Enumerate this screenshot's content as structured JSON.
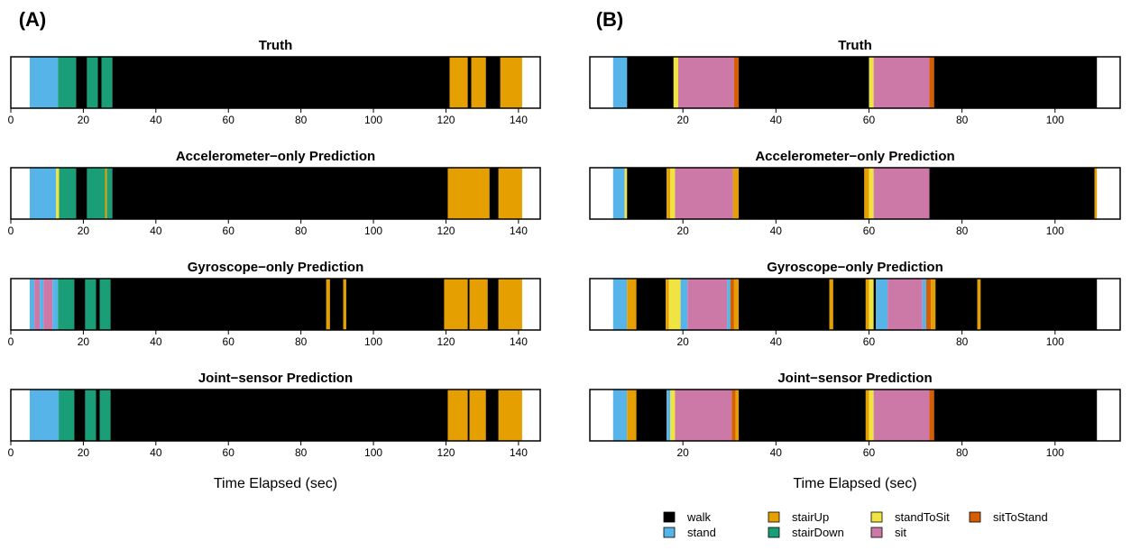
{
  "activity_colors": {
    "walk": "#000000",
    "stand": "#56B4E9",
    "stairUp": "#E69F00",
    "stairDown": "#1A9E77",
    "standToSit": "#F0E442",
    "sit": "#CC79A7",
    "sitToStand": "#D55E00"
  },
  "legend": [
    {
      "key": "walk",
      "label": "walk"
    },
    {
      "key": "stand",
      "label": "stand"
    },
    {
      "key": "stairUp",
      "label": "stairUp"
    },
    {
      "key": "stairDown",
      "label": "stairDown"
    },
    {
      "key": "standToSit",
      "label": "standToSit"
    },
    {
      "key": "sit",
      "label": "sit"
    },
    {
      "key": "sitToStand",
      "label": "sitToStand"
    }
  ],
  "chart_data": [
    {
      "type": "timeline",
      "panel": "(A)",
      "xlabel": "Time Elapsed (sec)",
      "xlim": [
        0,
        146
      ],
      "xticks": [
        0,
        20,
        40,
        60,
        80,
        100,
        120,
        140
      ],
      "tracks": [
        {
          "title": "Truth",
          "segments": [
            {
              "start": 5.2,
              "end": 13,
              "activity": "stand"
            },
            {
              "start": 13,
              "end": 18,
              "activity": "stairDown"
            },
            {
              "start": 18,
              "end": 21,
              "activity": "walk"
            },
            {
              "start": 21,
              "end": 24,
              "activity": "stairDown"
            },
            {
              "start": 24,
              "end": 25,
              "activity": "walk"
            },
            {
              "start": 25,
              "end": 28,
              "activity": "stairDown"
            },
            {
              "start": 28,
              "end": 121,
              "activity": "walk"
            },
            {
              "start": 121,
              "end": 126,
              "activity": "stairUp"
            },
            {
              "start": 126,
              "end": 127,
              "activity": "walk"
            },
            {
              "start": 127,
              "end": 131,
              "activity": "stairUp"
            },
            {
              "start": 131,
              "end": 135,
              "activity": "walk"
            },
            {
              "start": 135,
              "end": 141,
              "activity": "stairUp"
            }
          ]
        },
        {
          "title": "Accelerometer−only Prediction",
          "segments": [
            {
              "start": 5.2,
              "end": 12.5,
              "activity": "stand"
            },
            {
              "start": 12.5,
              "end": 13.3,
              "activity": "standToSit"
            },
            {
              "start": 13.3,
              "end": 18,
              "activity": "stairDown"
            },
            {
              "start": 18,
              "end": 21,
              "activity": "walk"
            },
            {
              "start": 21,
              "end": 26,
              "activity": "stairDown"
            },
            {
              "start": 26,
              "end": 26.5,
              "activity": "stairUp"
            },
            {
              "start": 26.5,
              "end": 28,
              "activity": "stairDown"
            },
            {
              "start": 28,
              "end": 120.5,
              "activity": "walk"
            },
            {
              "start": 120.5,
              "end": 132,
              "activity": "stairUp"
            },
            {
              "start": 132,
              "end": 134.5,
              "activity": "walk"
            },
            {
              "start": 134.5,
              "end": 141,
              "activity": "stairUp"
            }
          ]
        },
        {
          "title": "Gyroscope−only Prediction",
          "segments": [
            {
              "start": 5.2,
              "end": 6.5,
              "activity": "stand"
            },
            {
              "start": 6.5,
              "end": 8,
              "activity": "sit"
            },
            {
              "start": 8,
              "end": 9,
              "activity": "stand"
            },
            {
              "start": 9,
              "end": 11.5,
              "activity": "sit"
            },
            {
              "start": 11.5,
              "end": 13,
              "activity": "stand"
            },
            {
              "start": 13,
              "end": 17.5,
              "activity": "stairDown"
            },
            {
              "start": 17.5,
              "end": 20.5,
              "activity": "walk"
            },
            {
              "start": 20.5,
              "end": 23.5,
              "activity": "stairDown"
            },
            {
              "start": 23.5,
              "end": 24.5,
              "activity": "walk"
            },
            {
              "start": 24.5,
              "end": 27.5,
              "activity": "stairDown"
            },
            {
              "start": 27.5,
              "end": 87,
              "activity": "walk"
            },
            {
              "start": 87,
              "end": 88,
              "activity": "stairUp"
            },
            {
              "start": 88,
              "end": 91.7,
              "activity": "walk"
            },
            {
              "start": 91.7,
              "end": 92.5,
              "activity": "stairUp"
            },
            {
              "start": 92.5,
              "end": 119.5,
              "activity": "walk"
            },
            {
              "start": 119.5,
              "end": 126,
              "activity": "stairUp"
            },
            {
              "start": 126,
              "end": 126.5,
              "activity": "walk"
            },
            {
              "start": 126.5,
              "end": 131.5,
              "activity": "stairUp"
            },
            {
              "start": 131.5,
              "end": 134.5,
              "activity": "walk"
            },
            {
              "start": 134.5,
              "end": 141,
              "activity": "stairUp"
            }
          ]
        },
        {
          "title": "Joint−sensor Prediction",
          "segments": [
            {
              "start": 5.2,
              "end": 13.2,
              "activity": "stand"
            },
            {
              "start": 13.2,
              "end": 17.5,
              "activity": "stairDown"
            },
            {
              "start": 17.5,
              "end": 20.5,
              "activity": "walk"
            },
            {
              "start": 20.5,
              "end": 23.5,
              "activity": "stairDown"
            },
            {
              "start": 23.5,
              "end": 24.5,
              "activity": "walk"
            },
            {
              "start": 24.5,
              "end": 27.5,
              "activity": "stairDown"
            },
            {
              "start": 27.5,
              "end": 120.5,
              "activity": "walk"
            },
            {
              "start": 120.5,
              "end": 126,
              "activity": "stairUp"
            },
            {
              "start": 126,
              "end": 126.5,
              "activity": "walk"
            },
            {
              "start": 126.5,
              "end": 131,
              "activity": "stairUp"
            },
            {
              "start": 131,
              "end": 134.5,
              "activity": "walk"
            },
            {
              "start": 134.5,
              "end": 141,
              "activity": "stairUp"
            }
          ]
        }
      ]
    },
    {
      "type": "timeline",
      "panel": "(B)",
      "xlabel": "Time Elapsed (sec)",
      "xlim": [
        0,
        114
      ],
      "xticks": [
        20,
        40,
        60,
        80,
        100
      ],
      "tracks": [
        {
          "title": "Truth",
          "segments": [
            {
              "start": 5,
              "end": 8,
              "activity": "stand"
            },
            {
              "start": 8,
              "end": 18,
              "activity": "walk"
            },
            {
              "start": 18,
              "end": 19,
              "activity": "standToSit"
            },
            {
              "start": 19,
              "end": 31,
              "activity": "sit"
            },
            {
              "start": 31,
              "end": 32,
              "activity": "sitToStand"
            },
            {
              "start": 32,
              "end": 60,
              "activity": "walk"
            },
            {
              "start": 60,
              "end": 61,
              "activity": "standToSit"
            },
            {
              "start": 61,
              "end": 73,
              "activity": "sit"
            },
            {
              "start": 73,
              "end": 74,
              "activity": "sitToStand"
            },
            {
              "start": 74,
              "end": 109,
              "activity": "walk"
            }
          ]
        },
        {
          "title": "Accelerometer−only Prediction",
          "segments": [
            {
              "start": 5,
              "end": 7.5,
              "activity": "stand"
            },
            {
              "start": 7.5,
              "end": 8,
              "activity": "standToSit"
            },
            {
              "start": 8,
              "end": 16.5,
              "activity": "walk"
            },
            {
              "start": 16.5,
              "end": 17.3,
              "activity": "stairUp"
            },
            {
              "start": 17.3,
              "end": 18.3,
              "activity": "standToSit"
            },
            {
              "start": 18.3,
              "end": 30.8,
              "activity": "sit"
            },
            {
              "start": 30.8,
              "end": 32,
              "activity": "stairUp"
            },
            {
              "start": 32,
              "end": 59,
              "activity": "walk"
            },
            {
              "start": 59,
              "end": 60,
              "activity": "stairUp"
            },
            {
              "start": 60,
              "end": 61,
              "activity": "standToSit"
            },
            {
              "start": 61,
              "end": 73,
              "activity": "sit"
            },
            {
              "start": 73,
              "end": 108.5,
              "activity": "walk"
            },
            {
              "start": 108.5,
              "end": 109,
              "activity": "stairUp"
            }
          ]
        },
        {
          "title": "Gyroscope−only Prediction",
          "segments": [
            {
              "start": 5,
              "end": 8,
              "activity": "stand"
            },
            {
              "start": 8,
              "end": 10,
              "activity": "stairUp"
            },
            {
              "start": 10,
              "end": 16.3,
              "activity": "walk"
            },
            {
              "start": 16.3,
              "end": 17,
              "activity": "stairUp"
            },
            {
              "start": 17,
              "end": 19.5,
              "activity": "standToSit"
            },
            {
              "start": 19.5,
              "end": 21,
              "activity": "stand"
            },
            {
              "start": 21,
              "end": 29.5,
              "activity": "sit"
            },
            {
              "start": 29.5,
              "end": 30.2,
              "activity": "stand"
            },
            {
              "start": 30.2,
              "end": 31,
              "activity": "sitToStand"
            },
            {
              "start": 31,
              "end": 32,
              "activity": "stairUp"
            },
            {
              "start": 32,
              "end": 51.5,
              "activity": "walk"
            },
            {
              "start": 51.5,
              "end": 52.3,
              "activity": "stairUp"
            },
            {
              "start": 52.3,
              "end": 59.3,
              "activity": "walk"
            },
            {
              "start": 59.3,
              "end": 60,
              "activity": "stairUp"
            },
            {
              "start": 60,
              "end": 61,
              "activity": "standToSit"
            },
            {
              "start": 61,
              "end": 61.5,
              "activity": "walk"
            },
            {
              "start": 61.5,
              "end": 64,
              "activity": "stand"
            },
            {
              "start": 64,
              "end": 71.5,
              "activity": "sit"
            },
            {
              "start": 71.5,
              "end": 72.3,
              "activity": "stand"
            },
            {
              "start": 72.3,
              "end": 73.3,
              "activity": "sitToStand"
            },
            {
              "start": 73.3,
              "end": 74.3,
              "activity": "stairUp"
            },
            {
              "start": 74.3,
              "end": 83.3,
              "activity": "walk"
            },
            {
              "start": 83.3,
              "end": 84,
              "activity": "stairUp"
            },
            {
              "start": 84,
              "end": 109,
              "activity": "walk"
            }
          ]
        },
        {
          "title": "Joint−sensor Prediction",
          "segments": [
            {
              "start": 5,
              "end": 8,
              "activity": "stand"
            },
            {
              "start": 8,
              "end": 10,
              "activity": "stairUp"
            },
            {
              "start": 10,
              "end": 16.5,
              "activity": "walk"
            },
            {
              "start": 16.5,
              "end": 17.3,
              "activity": "stand"
            },
            {
              "start": 17.3,
              "end": 18.3,
              "activity": "standToSit"
            },
            {
              "start": 18.3,
              "end": 30.5,
              "activity": "sit"
            },
            {
              "start": 30.5,
              "end": 31.3,
              "activity": "sitToStand"
            },
            {
              "start": 31.3,
              "end": 32,
              "activity": "stairUp"
            },
            {
              "start": 32,
              "end": 59.3,
              "activity": "walk"
            },
            {
              "start": 59.3,
              "end": 60,
              "activity": "stairUp"
            },
            {
              "start": 60,
              "end": 61,
              "activity": "standToSit"
            },
            {
              "start": 61,
              "end": 73,
              "activity": "sit"
            },
            {
              "start": 73,
              "end": 74,
              "activity": "sitToStand"
            },
            {
              "start": 74,
              "end": 109,
              "activity": "walk"
            }
          ]
        }
      ]
    }
  ]
}
